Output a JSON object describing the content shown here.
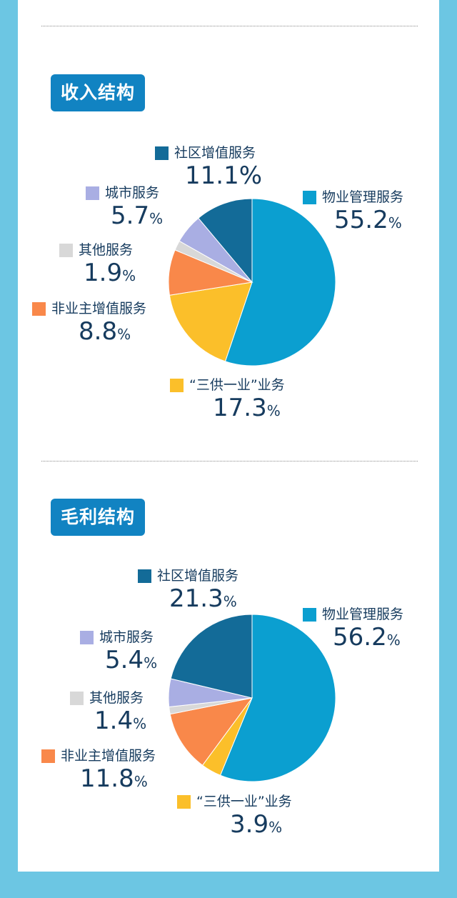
{
  "colors": {
    "物业管理服务": "#0b9fd0",
    "三供一业": "#fbbf2a",
    "非业主增值服务": "#f9884a",
    "其他服务": "#d8d8d8",
    "城市服务": "#a9aee3",
    "社区增值服务": "#136b98"
  },
  "sections": [
    {
      "title": "收入结构",
      "percent_sign": "%"
    },
    {
      "title": "毛利结构",
      "percent_sign": "%"
    }
  ],
  "chart_data": [
    {
      "type": "pie",
      "slices": [
        {
          "label": "物业管理服务",
          "value": 55.2,
          "display": "55.2"
        },
        {
          "label": "“三供一业”业务",
          "value": 17.3,
          "display": "17.3"
        },
        {
          "label": "非业主增值服务",
          "value": 8.8,
          "display": "8.8"
        },
        {
          "label": "其他服务",
          "value": 1.9,
          "display": "1.9"
        },
        {
          "label": "城市服务",
          "value": 5.7,
          "display": "5.7"
        },
        {
          "label": "社区增值服务",
          "value": 11.1,
          "display": "11.1"
        }
      ]
    },
    {
      "type": "pie",
      "slices": [
        {
          "label": "物业管理服务",
          "value": 56.2,
          "display": "56.2"
        },
        {
          "label": "“三供一业”业务",
          "value": 3.9,
          "display": "3.9"
        },
        {
          "label": "非业主增值服务",
          "value": 11.8,
          "display": "11.8"
        },
        {
          "label": "其他服务",
          "value": 1.4,
          "display": "1.4"
        },
        {
          "label": "城市服务",
          "value": 5.4,
          "display": "5.4"
        },
        {
          "label": "社区增值服务",
          "value": 21.3,
          "display": "21.3"
        }
      ]
    }
  ]
}
